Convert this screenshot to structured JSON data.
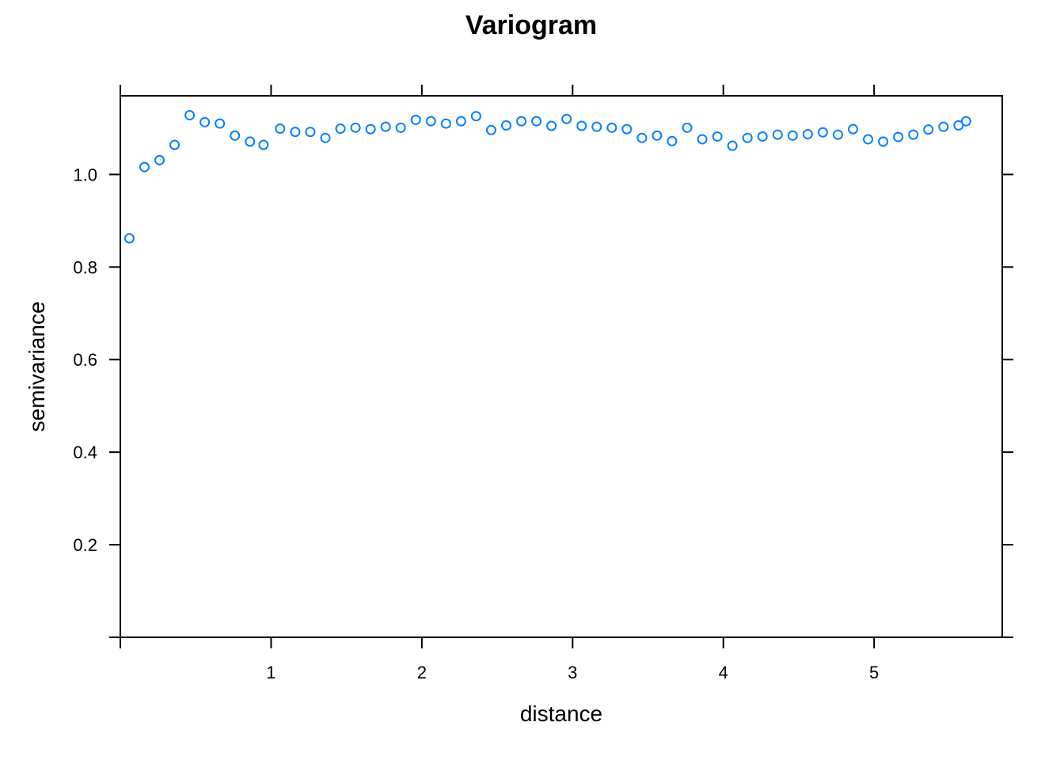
{
  "chart_data": {
    "type": "scatter",
    "title": "Variogram",
    "xlabel": "distance",
    "ylabel": "semivariance",
    "xlim": [
      0,
      5.85
    ],
    "ylim": [
      0,
      1.17
    ],
    "xticks": [
      1,
      2,
      3,
      4,
      5
    ],
    "xtick_labels": [
      "1",
      "2",
      "3",
      "4",
      "5"
    ],
    "yticks": [
      0.2,
      0.4,
      0.6,
      0.8,
      1.0
    ],
    "ytick_labels": [
      "0.2",
      "0.4",
      "0.6",
      "0.8",
      "1.0"
    ],
    "grid": false,
    "marker_color": "#0080ff",
    "series": [
      {
        "x": [
          0.06,
          0.16,
          0.26,
          0.36,
          0.46,
          0.56,
          0.66,
          0.76,
          0.86,
          0.95,
          1.06,
          1.16,
          1.26,
          1.36,
          1.46,
          1.56,
          1.66,
          1.76,
          1.86,
          1.96,
          2.06,
          2.16,
          2.26,
          2.36,
          2.46,
          2.56,
          2.66,
          2.76,
          2.86,
          2.96,
          3.06,
          3.16,
          3.26,
          3.36,
          3.46,
          3.56,
          3.66,
          3.76,
          3.86,
          3.96,
          4.06,
          4.16,
          4.26,
          4.36,
          4.46,
          4.56,
          4.66,
          4.76,
          4.86,
          4.96,
          5.06,
          5.16,
          5.26,
          5.36,
          5.46,
          5.56,
          5.61
        ],
        "y": [
          0.862,
          1.016,
          1.031,
          1.064,
          1.128,
          1.113,
          1.11,
          1.084,
          1.071,
          1.064,
          1.099,
          1.092,
          1.092,
          1.079,
          1.099,
          1.101,
          1.098,
          1.103,
          1.101,
          1.118,
          1.115,
          1.11,
          1.115,
          1.126,
          1.096,
          1.106,
          1.115,
          1.115,
          1.105,
          1.12,
          1.105,
          1.103,
          1.101,
          1.098,
          1.079,
          1.084,
          1.072,
          1.101,
          1.076,
          1.082,
          1.062,
          1.079,
          1.082,
          1.086,
          1.084,
          1.087,
          1.091,
          1.086,
          1.098,
          1.076,
          1.071,
          1.081,
          1.086,
          1.097,
          1.103,
          1.106,
          1.115
        ]
      }
    ]
  }
}
